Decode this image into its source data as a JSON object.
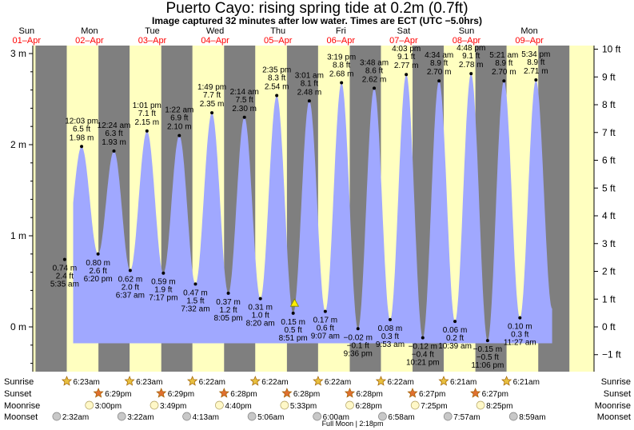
{
  "title": "Puerto Cayo: rising  spring tide at 0.2m (0.7ft)",
  "subtitle": "Image captured 32 minutes after low water. Times are ECT (UTC −5.0hrs)",
  "colors": {
    "night": "#7f7f7f",
    "day": "#ffffc0",
    "tide": "#a0a8ff",
    "date_red": "#ff0000"
  },
  "chart_data": {
    "type": "area",
    "title": "Puerto Cayo: rising  spring tide at 0.2m (0.7ft)",
    "y_left_label": "m",
    "y_left_ticks": [
      "3 m",
      "2 m",
      "1 m",
      "0 m"
    ],
    "y_right_ticks": [
      "10 ft",
      "9 ft",
      "8 ft",
      "7 ft",
      "6 ft",
      "5 ft",
      "4 ft",
      "3 ft",
      "2 ft",
      "1 ft",
      "0 ft",
      "−1 ft"
    ],
    "ylim_m": [
      -0.5,
      3.1
    ],
    "days": [
      {
        "dow": "Sun",
        "date": "01–Apr"
      },
      {
        "dow": "Mon",
        "date": "02–Apr"
      },
      {
        "dow": "Tue",
        "date": "03–Apr"
      },
      {
        "dow": "Wed",
        "date": "04–Apr"
      },
      {
        "dow": "Thu",
        "date": "05–Apr"
      },
      {
        "dow": "Fri",
        "date": "06–Apr"
      },
      {
        "dow": "Sat",
        "date": "07–Apr"
      },
      {
        "dow": "Sun",
        "date": "08–Apr"
      },
      {
        "dow": "Mon",
        "date": "09–Apr"
      }
    ],
    "extremes": [
      {
        "type": "low",
        "day": 1,
        "time": "5:35 am",
        "m": 0.74,
        "ft": 2.4,
        "lines": [
          "0.74 m",
          "2.4 ft",
          "5:35 am"
        ]
      },
      {
        "type": "high",
        "day": 1,
        "time": "12:03 pm",
        "m": 1.98,
        "ft": 6.5,
        "lines": [
          "12:03 pm",
          "6.5 ft",
          "1.98 m"
        ]
      },
      {
        "type": "low",
        "day": 1,
        "time": "6:20 pm",
        "m": 0.8,
        "ft": 2.6,
        "lines": [
          "0.80 m",
          "2.6 ft",
          "6:20 pm"
        ]
      },
      {
        "type": "high",
        "day": 2,
        "time": "12:24 am",
        "m": 1.93,
        "ft": 6.3,
        "lines": [
          "12:24 am",
          "6.3 ft",
          "1.93 m"
        ]
      },
      {
        "type": "low",
        "day": 2,
        "time": "6:37 am",
        "m": 0.62,
        "ft": 2.0,
        "lines": [
          "0.62 m",
          "2.0 ft",
          "6:37 am"
        ]
      },
      {
        "type": "high",
        "day": 2,
        "time": "1:01 pm",
        "m": 2.15,
        "ft": 7.1,
        "lines": [
          "1:01 pm",
          "7.1 ft",
          "2.15 m"
        ]
      },
      {
        "type": "low",
        "day": 2,
        "time": "7:17 pm",
        "m": 0.59,
        "ft": 1.9,
        "lines": [
          "0.59 m",
          "1.9 ft",
          "7:17 pm"
        ]
      },
      {
        "type": "high",
        "day": 3,
        "time": "1:22 am",
        "m": 2.1,
        "ft": 6.9,
        "lines": [
          "1:22 am",
          "6.9 ft",
          "2.10 m"
        ]
      },
      {
        "type": "low",
        "day": 3,
        "time": "7:32 am",
        "m": 0.47,
        "ft": 1.5,
        "lines": [
          "0.47 m",
          "1.5 ft",
          "7:32 am"
        ]
      },
      {
        "type": "high",
        "day": 3,
        "time": "1:49 pm",
        "m": 2.35,
        "ft": 7.7,
        "lines": [
          "1:49 pm",
          "7.7 ft",
          "2.35 m"
        ]
      },
      {
        "type": "low",
        "day": 3,
        "time": "8:05 pm",
        "m": 0.37,
        "ft": 1.2,
        "lines": [
          "0.37 m",
          "1.2 ft",
          "8:05 pm"
        ]
      },
      {
        "type": "high",
        "day": 4,
        "time": "2:14 am",
        "m": 2.3,
        "ft": 7.5,
        "lines": [
          "2:14 am",
          "7.5 ft",
          "2.30 m"
        ]
      },
      {
        "type": "low",
        "day": 4,
        "time": "8:20 am",
        "m": 0.31,
        "ft": 1.0,
        "lines": [
          "0.31 m",
          "1.0 ft",
          "8:20 am"
        ]
      },
      {
        "type": "high",
        "day": 4,
        "time": "2:35 pm",
        "m": 2.54,
        "ft": 8.3,
        "lines": [
          "2:35 pm",
          "8.3 ft",
          "2.54 m"
        ]
      },
      {
        "type": "low",
        "day": 4,
        "time": "8:51 pm",
        "m": 0.15,
        "ft": 0.5,
        "lines": [
          "0.15 m",
          "0.5 ft",
          "8:51 pm"
        ]
      },
      {
        "type": "high",
        "day": 5,
        "time": "3:01 am",
        "m": 2.48,
        "ft": 8.1,
        "lines": [
          "3:01 am",
          "8.1 ft",
          "2.48 m"
        ]
      },
      {
        "type": "low",
        "day": 5,
        "time": "9:07 am",
        "m": 0.17,
        "ft": 0.6,
        "lines": [
          "0.17 m",
          "0.6 ft",
          "9:07 am"
        ]
      },
      {
        "type": "high",
        "day": 5,
        "time": "3:19 pm",
        "m": 2.68,
        "ft": 8.8,
        "lines": [
          "3:19 pm",
          "8.8 ft",
          "2.68 m"
        ]
      },
      {
        "type": "low",
        "day": 5,
        "time": "9:36 pm",
        "m": -0.02,
        "ft": -0.1,
        "lines": [
          "−0.02 m",
          "−0.1 ft",
          "9:36 pm"
        ]
      },
      {
        "type": "high",
        "day": 6,
        "time": "3:48 am",
        "m": 2.62,
        "ft": 8.6,
        "lines": [
          "3:48 am",
          "8.6 ft",
          "2.62 m"
        ]
      },
      {
        "type": "low",
        "day": 6,
        "time": "9:53 am",
        "m": 0.08,
        "ft": 0.3,
        "lines": [
          "0.08 m",
          "0.3 ft",
          "9:53 am"
        ]
      },
      {
        "type": "high",
        "day": 6,
        "time": "4:03 pm",
        "m": 2.77,
        "ft": 9.1,
        "lines": [
          "4:03 pm",
          "9.1 ft",
          "2.77 m"
        ]
      },
      {
        "type": "low",
        "day": 6,
        "time": "10:21 pm",
        "m": -0.12,
        "ft": -0.4,
        "lines": [
          "−0.12 m",
          "−0.4 ft",
          "10:21 pm"
        ]
      },
      {
        "type": "high",
        "day": 7,
        "time": "4:34 am",
        "m": 2.7,
        "ft": 8.9,
        "lines": [
          "4:34 am",
          "8.9 ft",
          "2.70 m"
        ]
      },
      {
        "type": "low",
        "day": 7,
        "time": "10:39 am",
        "m": 0.06,
        "ft": 0.2,
        "lines": [
          "0.06 m",
          "0.2 ft",
          "10:39 am"
        ]
      },
      {
        "type": "high",
        "day": 7,
        "time": "4:48 pm",
        "m": 2.78,
        "ft": 9.1,
        "lines": [
          "4:48 pm",
          "9.1 ft",
          "2.78 m"
        ]
      },
      {
        "type": "low",
        "day": 7,
        "time": "11:06 pm",
        "m": -0.15,
        "ft": -0.5,
        "lines": [
          "−0.15 m",
          "−0.5 ft",
          "11:06 pm"
        ]
      },
      {
        "type": "high",
        "day": 8,
        "time": "5:21 am",
        "m": 2.7,
        "ft": 8.9,
        "lines": [
          "5:21 am",
          "8.9 ft",
          "2.70 m"
        ]
      },
      {
        "type": "low",
        "day": 8,
        "time": "11:27 am",
        "m": 0.1,
        "ft": 0.3,
        "lines": [
          "0.10 m",
          "0.3 ft",
          "11:27 am"
        ]
      },
      {
        "type": "high",
        "day": 8,
        "time": "5:34 pm",
        "m": 2.71,
        "ft": 8.9,
        "lines": [
          "5:34 pm",
          "8.9 ft",
          "2.71 m"
        ]
      }
    ],
    "current_marker": {
      "day": 4,
      "time": "9:23 pm",
      "m": 0.2
    },
    "sunrise": [
      {
        "day": 1,
        "time": "6:23am"
      },
      {
        "day": 2,
        "time": "6:23am"
      },
      {
        "day": 3,
        "time": "6:22am"
      },
      {
        "day": 4,
        "time": "6:22am"
      },
      {
        "day": 5,
        "time": "6:22am"
      },
      {
        "day": 6,
        "time": "6:22am"
      },
      {
        "day": 7,
        "time": "6:21am"
      },
      {
        "day": 8,
        "time": "6:21am"
      }
    ],
    "sunset": [
      {
        "day": 1,
        "time": "6:29pm"
      },
      {
        "day": 2,
        "time": "6:29pm"
      },
      {
        "day": 3,
        "time": "6:28pm"
      },
      {
        "day": 4,
        "time": "6:28pm"
      },
      {
        "day": 5,
        "time": "6:28pm"
      },
      {
        "day": 6,
        "time": "6:27pm"
      },
      {
        "day": 7,
        "time": "6:27pm"
      }
    ],
    "moonrise": [
      {
        "day": 1,
        "time": "3:00pm"
      },
      {
        "day": 2,
        "time": "3:49pm"
      },
      {
        "day": 3,
        "time": "4:40pm"
      },
      {
        "day": 4,
        "time": "5:33pm"
      },
      {
        "day": 5,
        "time": "6:28pm"
      },
      {
        "day": 6,
        "time": "7:25pm"
      },
      {
        "day": 7,
        "time": "8:25pm"
      }
    ],
    "moonset": [
      {
        "day": 1,
        "time": "2:32am"
      },
      {
        "day": 2,
        "time": "3:22am"
      },
      {
        "day": 3,
        "time": "4:13am"
      },
      {
        "day": 4,
        "time": "5:06am"
      },
      {
        "day": 5,
        "time": "6:00am"
      },
      {
        "day": 6,
        "time": "6:58am"
      },
      {
        "day": 7,
        "time": "7:57am"
      },
      {
        "day": 8,
        "time": "8:59am"
      }
    ],
    "row_labels": [
      "Sunrise",
      "Sunset",
      "Moonrise",
      "Moonset"
    ],
    "footnote": "Full Moon | 2:18pm"
  }
}
